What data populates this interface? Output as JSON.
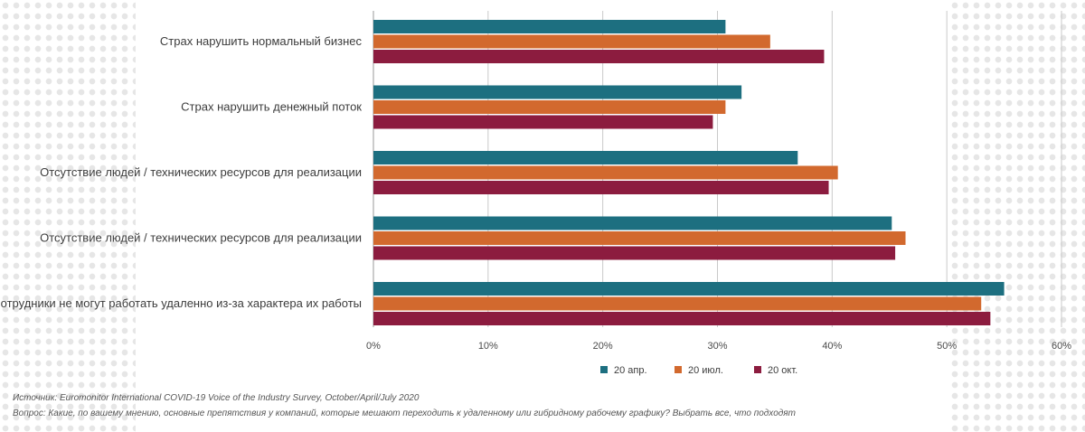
{
  "chart_data": {
    "type": "bar",
    "orientation": "horizontal",
    "categories": [
      "Страх нарушить нормальный бизнес",
      "Страх нарушить денежный поток",
      "Отсутствие людей / технических ресурсов для реализации",
      "Отсутствие людей / технических ресурсов для реализации",
      "Сотрудники не могут работать удаленно из-за характера их работы"
    ],
    "series": [
      {
        "name": "20 апр.",
        "color": "#1d6f80",
        "values": [
          30.7,
          32.1,
          37.0,
          45.2,
          55.0
        ]
      },
      {
        "name": "20 июл.",
        "color": "#d2692e",
        "values": [
          34.6,
          30.7,
          40.5,
          46.4,
          53.0
        ]
      },
      {
        "name": "20 окт.",
        "color": "#8c1c3f",
        "values": [
          39.3,
          29.6,
          39.7,
          45.5,
          53.8
        ]
      }
    ],
    "xlim": [
      0,
      60
    ],
    "ticks": [
      "0%",
      "10%",
      "20%",
      "30%",
      "40%",
      "50%",
      "60%"
    ],
    "grid": true,
    "legend_position": "bottom"
  },
  "notes": {
    "source": "Источник: Euromonitor International COVID-19 Voice of the Industry Survey, October/April/July 2020",
    "question": "Вопрос: Какие, по вашему мнению, основные препятствия у компаний, которые мешают переходить к удаленному или гибридному рабочему графику? Выбрать все, что подходят"
  }
}
